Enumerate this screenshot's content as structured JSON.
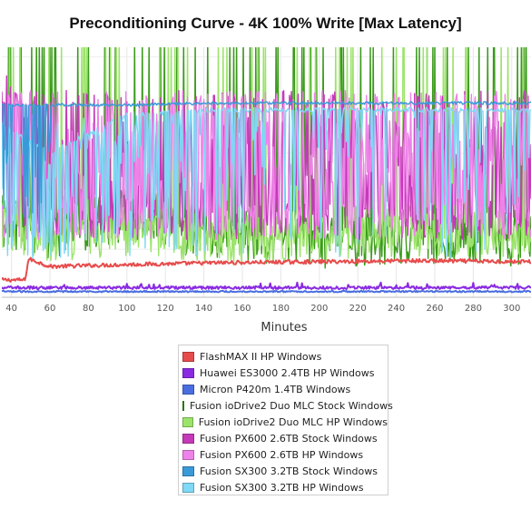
{
  "title": "Preconditioning Curve - 4K 100% Write [Max Latency]",
  "chart_data": {
    "type": "line",
    "title": "Preconditioning Curve - 4K 100% Write [Max Latency]",
    "xlabel": "Minutes",
    "ylabel": "",
    "xlim": [
      35,
      310
    ],
    "xticks": [
      40,
      60,
      80,
      100,
      120,
      140,
      160,
      180,
      200,
      220,
      240,
      260,
      280,
      300
    ],
    "ylim": [
      0,
      260
    ],
    "grid": true,
    "legend_position": "bottom-center",
    "series": [
      {
        "name": "FlashMAX II HP Windows",
        "color": "#e74c4c",
        "style": "low_rising",
        "approx_values": {
          "x": [
            35,
            47,
            49,
            60,
            100,
            150,
            200,
            250,
            310
          ],
          "y": [
            18,
            18,
            40,
            32,
            34,
            36,
            37,
            38,
            37
          ]
        }
      },
      {
        "name": "Huawei ES3000 2.4TB HP Windows",
        "color": "#8a2be2",
        "style": "low_flat",
        "approx_values": {
          "x": [
            35,
            100,
            200,
            310
          ],
          "y": [
            10,
            10,
            10,
            10
          ]
        }
      },
      {
        "name": "Micron P420m 1.4TB Windows",
        "color": "#4a6ee0",
        "style": "floor",
        "approx_values": {
          "x": [
            35,
            100,
            200,
            310
          ],
          "y": [
            6,
            6,
            6,
            6
          ]
        }
      },
      {
        "name": "Fusion ioDrive2 Duo MLC Stock Windows",
        "color": "#3a9a1a",
        "style": "spiky",
        "approx_values": {
          "x": [
            35,
            60,
            100,
            150,
            200,
            250,
            310
          ],
          "y": [
            80,
            70,
            85,
            65,
            60,
            65,
            60
          ]
        }
      },
      {
        "name": "Fusion ioDrive2 Duo MLC HP Windows",
        "color": "#9be36a",
        "style": "noisy",
        "approx_values": {
          "x": [
            35,
            60,
            100,
            150,
            200,
            250,
            310
          ],
          "y": [
            75,
            65,
            70,
            60,
            65,
            70,
            65
          ]
        }
      },
      {
        "name": "Fusion PX600 2.6TB Stock Windows",
        "color": "#c43ab8",
        "style": "noisy_high",
        "approx_values": {
          "x": [
            35,
            60,
            100,
            150,
            200,
            250,
            310
          ],
          "y": [
            200,
            120,
            140,
            150,
            160,
            150,
            140
          ]
        }
      },
      {
        "name": "Fusion PX600 2.6TB HP Windows",
        "color": "#ee82e8",
        "style": "noisy_high",
        "approx_values": {
          "x": [
            35,
            60,
            100,
            150,
            200,
            250,
            310
          ],
          "y": [
            190,
            130,
            150,
            160,
            150,
            160,
            150
          ]
        }
      },
      {
        "name": "Fusion SX300 3.2TB Stock Windows",
        "color": "#3a9ad8",
        "style": "plateau",
        "approx_values": {
          "x": [
            35,
            60,
            100,
            150,
            200,
            250,
            310
          ],
          "y": [
            200,
            200,
            200,
            202,
            202,
            202,
            202
          ]
        }
      },
      {
        "name": "Fusion SX300 3.2TB HP Windows",
        "color": "#7fd8f5",
        "style": "noisy_plateau",
        "approx_values": {
          "x": [
            35,
            60,
            100,
            150,
            200,
            250,
            310
          ],
          "y": [
            180,
            150,
            190,
            195,
            195,
            195,
            195
          ]
        }
      }
    ]
  }
}
